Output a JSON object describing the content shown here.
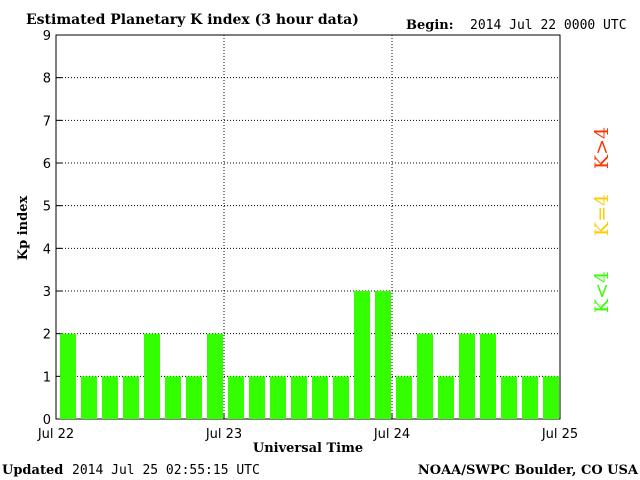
{
  "header": {
    "title": "Estimated Planetary K index (3 hour data)",
    "begin_label": "Begin:",
    "begin_value": "2014 Jul 22 0000 UTC"
  },
  "footer": {
    "updated_label": "Updated",
    "updated_value": "2014 Jul 25 02:55:15 UTC",
    "source": "NOAA/SWPC Boulder, CO USA"
  },
  "legend": {
    "low": {
      "text": "K<4",
      "color": "#33ff00"
    },
    "mid": {
      "text": "K=4",
      "color": "#ffcc00"
    },
    "high": {
      "text": "K>4",
      "color": "#ff3300"
    }
  },
  "colors": {
    "bar": "#33ff00",
    "grid": "#000000",
    "frame": "#000000"
  },
  "chart_data": {
    "type": "bar",
    "title": "Estimated Planetary K index (3 hour data)",
    "xlabel": "Universal Time",
    "ylabel": "Kp index",
    "ylim": [
      0,
      9
    ],
    "yticks": [
      "0",
      "1",
      "2",
      "3",
      "4",
      "5",
      "6",
      "7",
      "8",
      "9"
    ],
    "xticks": [
      "Jul 22",
      "Jul 23",
      "Jul 24",
      "Jul 25"
    ],
    "grid": "dotted",
    "x_interval_hours": 3,
    "values": [
      2,
      1,
      1,
      1,
      2,
      1,
      1,
      2,
      1,
      1,
      1,
      1,
      1,
      1,
      3,
      3,
      1,
      2,
      1,
      2,
      2,
      1,
      1,
      1
    ]
  }
}
